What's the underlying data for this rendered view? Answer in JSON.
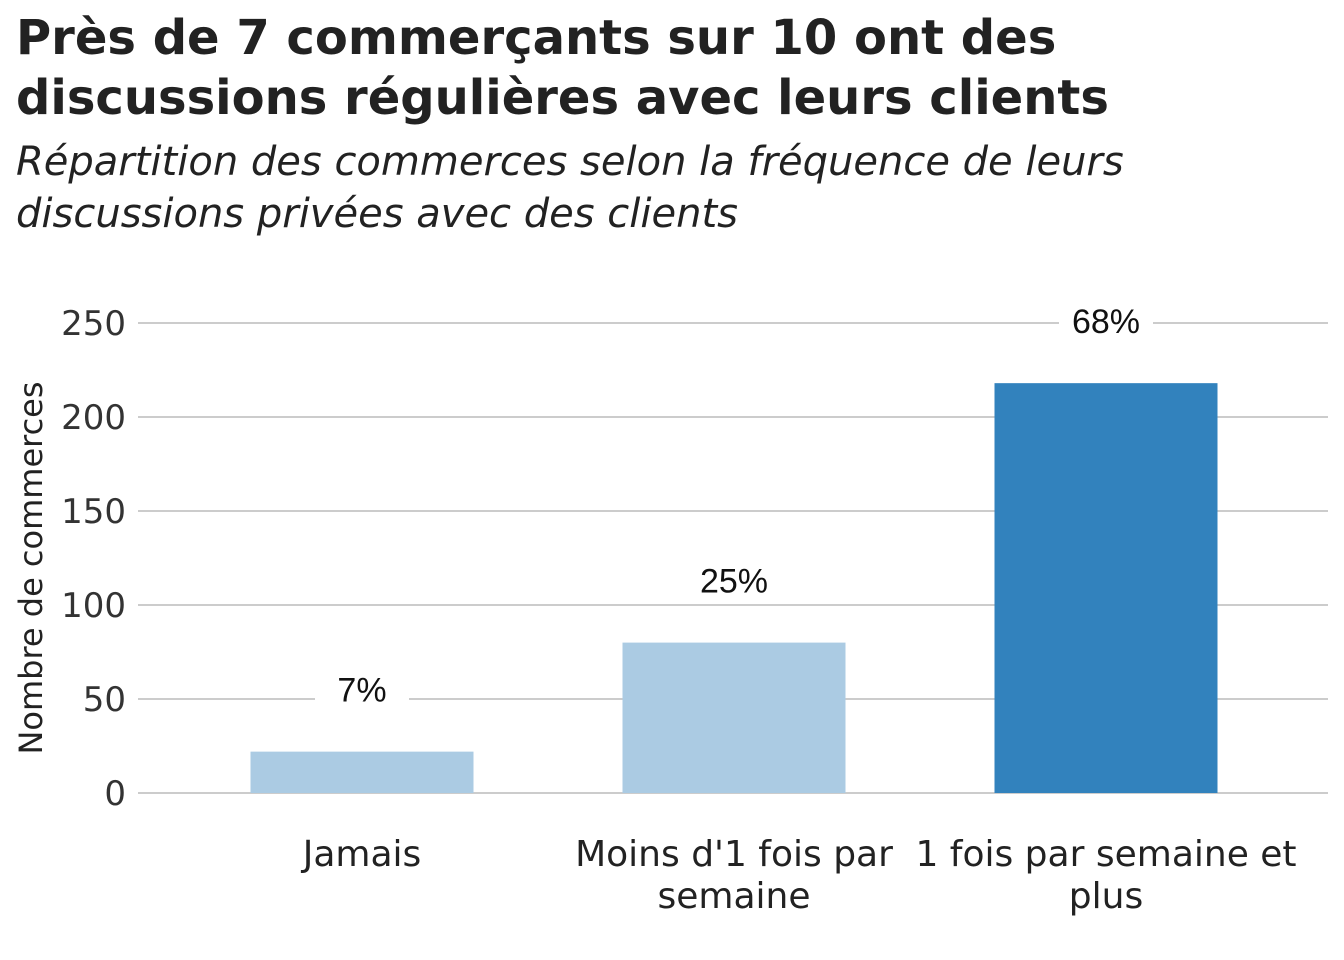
{
  "chart_data": {
    "type": "bar",
    "title": "Près de 7 commerçants sur 10 ont des discussions régulières avec leurs clients",
    "subtitle": "Répartition des commerces selon la fréquence de leurs discussions privées avec des clients",
    "xlabel": "",
    "ylabel": "Nombre de commerces",
    "ylim": [
      0,
      250
    ],
    "yticks": [
      0,
      50,
      100,
      150,
      200,
      250
    ],
    "grid": true,
    "categories": [
      [
        "Jamais"
      ],
      [
        "Moins d'1 fois par",
        "semaine"
      ],
      [
        "1 fois par semaine et",
        "plus"
      ]
    ],
    "values": [
      22,
      80,
      218
    ],
    "labels": [
      "7%",
      "25%",
      "68%"
    ],
    "colors": [
      "#abcbe3",
      "#abcbe3",
      "#3282bd"
    ]
  }
}
